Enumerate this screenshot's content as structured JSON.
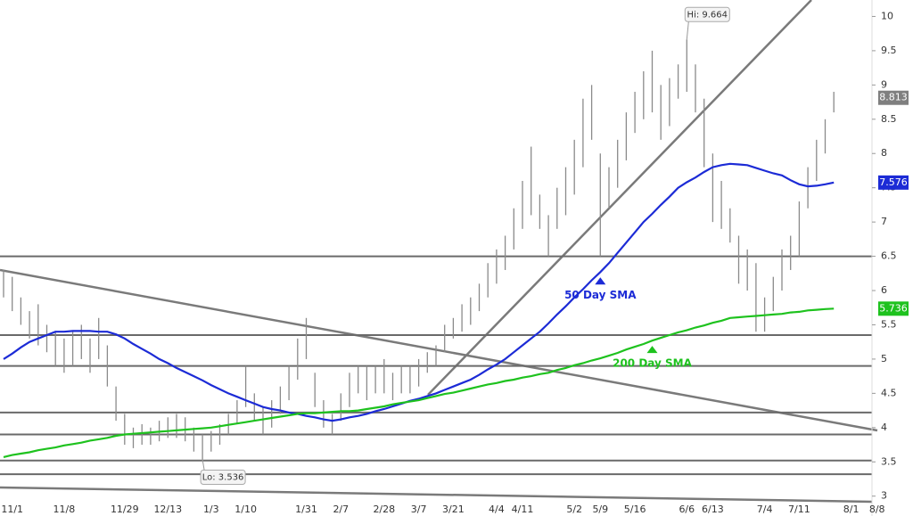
{
  "chart_data": {
    "type": "ohlc",
    "categories": [
      null,
      "11/1",
      null,
      null,
      null,
      null,
      null,
      "11/8",
      null,
      null,
      null,
      null,
      null,
      null,
      "11/29",
      null,
      null,
      null,
      null,
      "12/13",
      null,
      null,
      null,
      null,
      "1/3",
      null,
      null,
      null,
      "1/10",
      null,
      null,
      null,
      null,
      null,
      null,
      "1/31",
      null,
      null,
      null,
      "2/7",
      null,
      null,
      null,
      null,
      "2/28",
      null,
      null,
      null,
      "3/7",
      null,
      null,
      null,
      "3/21",
      null,
      null,
      null,
      null,
      "4/4",
      null,
      null,
      "4/11",
      null,
      null,
      null,
      null,
      null,
      "5/2",
      null,
      null,
      "5/9",
      null,
      null,
      null,
      "5/16",
      null,
      null,
      null,
      null,
      null,
      "6/6",
      null,
      null,
      "6/13",
      null,
      null,
      null,
      null,
      null,
      "7/4",
      null,
      null,
      null,
      "7/11",
      null,
      null,
      null,
      null,
      null,
      "8/1",
      null,
      null,
      "8/8"
    ],
    "high": [
      6.3,
      6.2,
      5.9,
      5.7,
      5.8,
      5.5,
      5.4,
      5.3,
      5.4,
      5.5,
      5.3,
      5.6,
      5.2,
      4.6,
      4.2,
      4.0,
      4.05,
      4.0,
      4.1,
      4.15,
      4.2,
      4.15,
      4.0,
      3.9,
      3.95,
      4.05,
      4.2,
      4.4,
      4.9,
      4.5,
      4.3,
      4.4,
      4.6,
      4.9,
      5.3,
      5.6,
      4.8,
      4.4,
      4.2,
      4.5,
      4.8,
      4.9,
      4.9,
      4.9,
      5.0,
      4.8,
      4.9,
      4.9,
      5.0,
      5.1,
      5.2,
      5.5,
      5.6,
      5.8,
      5.9,
      6.1,
      6.4,
      6.6,
      6.8,
      7.2,
      7.6,
      8.1,
      7.4,
      7.1,
      7.5,
      7.8,
      8.2,
      8.8,
      9.0,
      8.0,
      7.8,
      8.2,
      8.6,
      8.9,
      9.2,
      9.5,
      9.0,
      9.1,
      9.3,
      9.664,
      9.3,
      8.8,
      8.0,
      7.6,
      7.2,
      6.8,
      6.6,
      6.4,
      5.9,
      6.2,
      6.6,
      6.8,
      7.3,
      7.8,
      8.2,
      8.5,
      8.9,
      null,
      null,
      null,
      null,
      null
    ],
    "low": [
      5.9,
      5.7,
      5.5,
      5.3,
      5.2,
      5.1,
      4.9,
      4.8,
      4.9,
      5.0,
      4.8,
      5.0,
      4.6,
      4.1,
      3.75,
      3.7,
      3.75,
      3.75,
      3.8,
      3.85,
      3.85,
      3.8,
      3.65,
      3.536,
      3.65,
      3.75,
      3.9,
      4.05,
      4.3,
      4.1,
      3.9,
      4.0,
      4.2,
      4.4,
      4.7,
      5.0,
      4.3,
      4.0,
      3.9,
      4.1,
      4.3,
      4.5,
      4.4,
      4.5,
      4.5,
      4.4,
      4.5,
      4.5,
      4.6,
      4.8,
      4.9,
      5.1,
      5.3,
      5.4,
      5.5,
      5.7,
      5.9,
      6.1,
      6.3,
      6.6,
      6.9,
      7.1,
      6.9,
      6.5,
      6.9,
      7.1,
      7.4,
      7.8,
      8.2,
      6.5,
      7.2,
      7.5,
      7.9,
      8.3,
      8.5,
      8.6,
      8.2,
      8.4,
      8.8,
      8.9,
      8.6,
      7.8,
      7.0,
      6.9,
      6.7,
      6.1,
      6.0,
      5.4,
      5.4,
      5.7,
      6.0,
      6.3,
      6.5,
      7.2,
      7.6,
      8.0,
      8.6,
      null,
      null,
      null,
      null,
      null
    ],
    "bar_color": "#8a8a8a",
    "series": [
      {
        "name": "50 Day SMA",
        "color": "#1c2bd6",
        "values": [
          5.0,
          5.08,
          5.17,
          5.25,
          5.3,
          5.35,
          5.4,
          5.4,
          5.41,
          5.41,
          5.41,
          5.4,
          5.4,
          5.36,
          5.3,
          5.22,
          5.15,
          5.08,
          5.0,
          4.94,
          4.87,
          4.81,
          4.75,
          4.69,
          4.62,
          4.56,
          4.5,
          4.45,
          4.4,
          4.35,
          4.3,
          4.27,
          4.25,
          4.22,
          4.2,
          4.17,
          4.15,
          4.12,
          4.1,
          4.12,
          4.15,
          4.17,
          4.2,
          4.24,
          4.27,
          4.31,
          4.35,
          4.39,
          4.42,
          4.46,
          4.5,
          4.55,
          4.6,
          4.65,
          4.7,
          4.77,
          4.85,
          4.92,
          5.0,
          5.1,
          5.2,
          5.3,
          5.4,
          5.52,
          5.65,
          5.77,
          5.9,
          6.02,
          6.15,
          6.27,
          6.4,
          6.55,
          6.7,
          6.85,
          7.0,
          7.12,
          7.25,
          7.37,
          7.5,
          7.58,
          7.65,
          7.73,
          7.8,
          7.83,
          7.85,
          7.84,
          7.83,
          7.79,
          7.75,
          7.71,
          7.68,
          7.61,
          7.55,
          7.52,
          7.53,
          7.55,
          7.576,
          null,
          null,
          null,
          null,
          null
        ]
      },
      {
        "name": "200 Day SMA",
        "color": "#1ec21e",
        "values": [
          3.57,
          3.6,
          3.62,
          3.64,
          3.67,
          3.69,
          3.71,
          3.74,
          3.76,
          3.78,
          3.81,
          3.83,
          3.85,
          3.88,
          3.9,
          3.91,
          3.92,
          3.93,
          3.94,
          3.95,
          3.96,
          3.97,
          3.98,
          3.99,
          4.0,
          4.02,
          4.04,
          4.06,
          4.08,
          4.1,
          4.12,
          4.14,
          4.16,
          4.18,
          4.2,
          4.21,
          4.21,
          4.22,
          4.23,
          4.24,
          4.24,
          4.25,
          4.27,
          4.29,
          4.31,
          4.34,
          4.36,
          4.38,
          4.4,
          4.43,
          4.46,
          4.49,
          4.51,
          4.54,
          4.57,
          4.6,
          4.63,
          4.65,
          4.68,
          4.7,
          4.73,
          4.75,
          4.78,
          4.8,
          4.84,
          4.87,
          4.91,
          4.94,
          4.98,
          5.01,
          5.05,
          5.09,
          5.14,
          5.18,
          5.22,
          5.27,
          5.31,
          5.35,
          5.39,
          5.42,
          5.46,
          5.49,
          5.53,
          5.56,
          5.6,
          5.61,
          5.62,
          5.63,
          5.64,
          5.65,
          5.66,
          5.68,
          5.69,
          5.71,
          5.72,
          5.73,
          5.736,
          null,
          null,
          null,
          null,
          null
        ]
      }
    ],
    "levels": [
      6.5,
      5.35,
      4.9,
      4.22,
      3.9,
      3.52,
      3.32
    ],
    "annotations": [
      {
        "label": "Hi: 9.664",
        "value": 9.664
      },
      {
        "label": "Lo: 3.536",
        "value": 3.536
      }
    ],
    "last_values": [
      {
        "value": 8.813,
        "color": "#7f7f7f"
      },
      {
        "value": 7.576,
        "color": "#1c2bd6"
      },
      {
        "value": 5.736,
        "color": "#1ec21e"
      }
    ],
    "ylim": [
      2.71,
      10.24
    ],
    "yticks": [
      3,
      3.5,
      4,
      4.5,
      5,
      5.5,
      6,
      6.5,
      7,
      7.5,
      8,
      8.5,
      9,
      9.5,
      10
    ]
  }
}
